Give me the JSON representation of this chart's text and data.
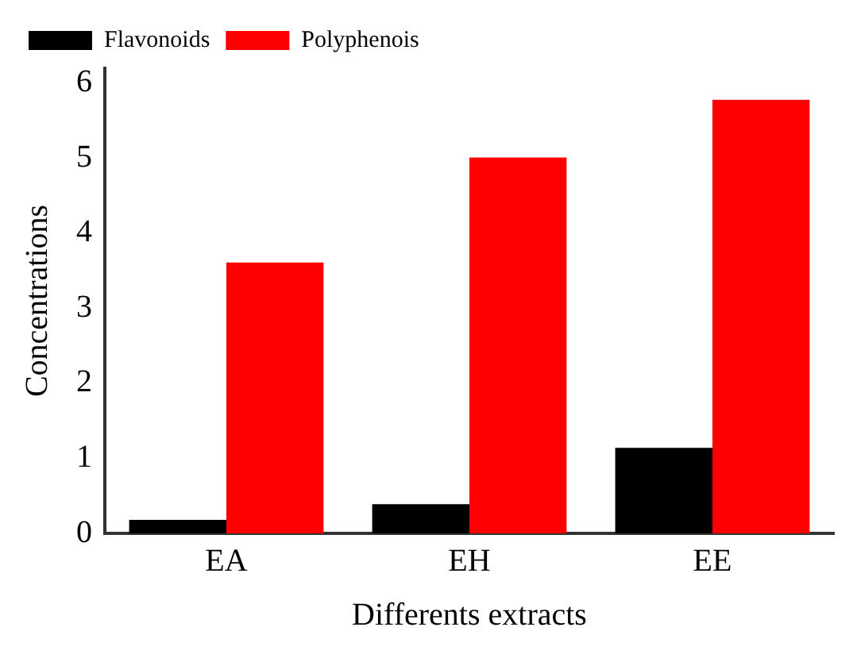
{
  "chart_data": {
    "type": "bar",
    "xlabel": "Differents extracts",
    "ylabel": "Concentrations",
    "categories": [
      "EA",
      "EH",
      "EE"
    ],
    "series": [
      {
        "name": "Flavonoids",
        "color": "#000000",
        "values": [
          0.18,
          0.39,
          1.14
        ]
      },
      {
        "name": "Polyphenois",
        "color": "#ff0000",
        "values": [
          3.61,
          5.01,
          5.78
        ]
      }
    ],
    "ylim": [
      0,
      6.2
    ],
    "yticks": [
      0,
      1,
      2,
      3,
      4,
      5,
      6
    ],
    "grid": false,
    "legend": "top left"
  }
}
